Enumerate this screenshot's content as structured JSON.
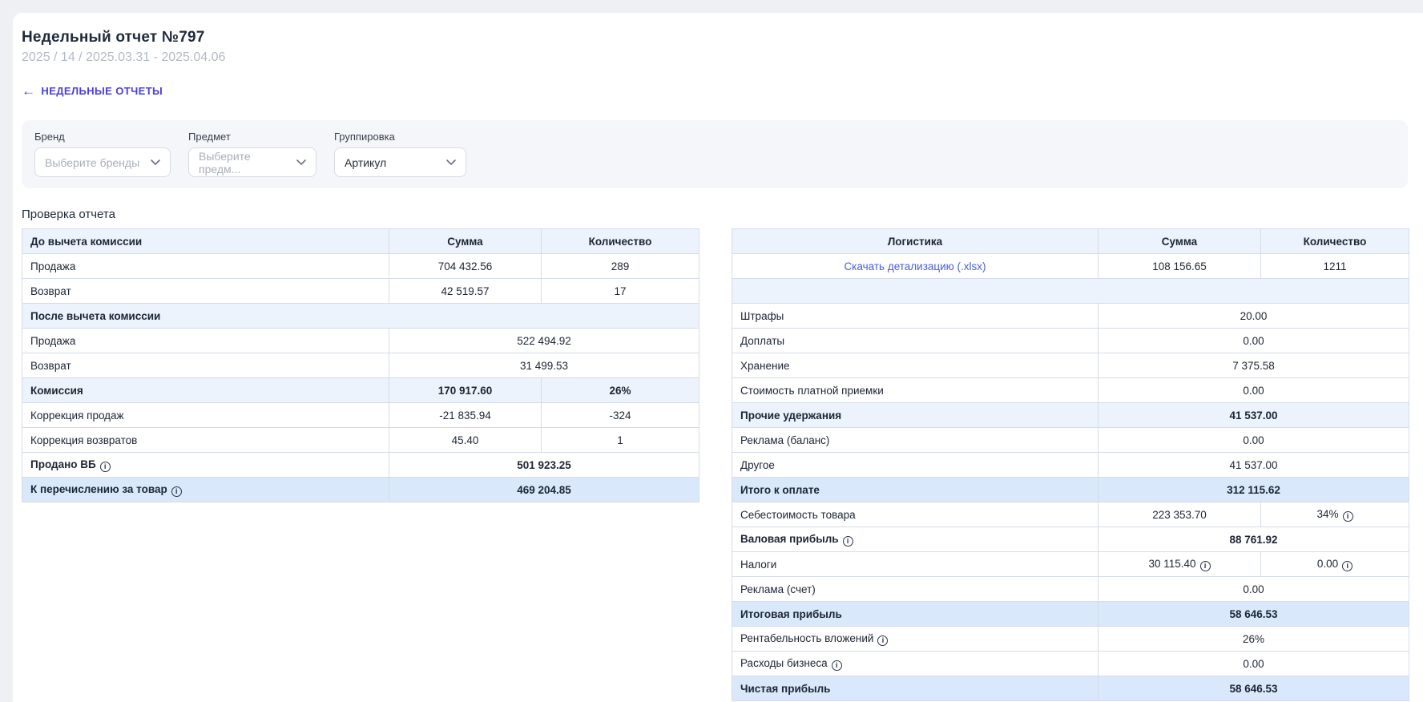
{
  "page": {
    "title": "Недельный отчет №797",
    "subtitle": "2025 / 14 / 2025.03.31 - 2025.04.06",
    "back_arrow": "←",
    "back_link": "НЕДЕЛЬНЫЕ ОТЧЕТЫ",
    "section_heading": "Проверка отчета"
  },
  "filters": {
    "brand": {
      "label": "Бренд",
      "value": "Выберите бренды"
    },
    "subject": {
      "label": "Предмет",
      "value": "Выберите предм..."
    },
    "grouping": {
      "label": "Группировка",
      "value": "Артикул"
    }
  },
  "left_table": {
    "header": [
      "До вычета комиссии",
      "Сумма",
      "Количество"
    ],
    "rows": [
      {
        "label": "Продажа",
        "cells": [
          {
            "t": "704 432.56"
          },
          {
            "t": "289"
          }
        ]
      },
      {
        "label": "Возврат",
        "cells": [
          {
            "t": "42 519.57"
          },
          {
            "t": "17"
          }
        ]
      },
      {
        "label": "После вычета комиссии",
        "style": "section",
        "cells": []
      },
      {
        "label": "Продажа",
        "cells": [
          {
            "t": "522 494.92",
            "span": 2
          }
        ]
      },
      {
        "label": "Возврат",
        "cells": [
          {
            "t": "31 499.53",
            "span": 2
          }
        ]
      },
      {
        "label": "Комиссия",
        "style": "section",
        "cells": [
          {
            "t": "170 917.60"
          },
          {
            "t": "26%"
          }
        ]
      },
      {
        "label": "Коррекция продаж",
        "cells": [
          {
            "t": "-21 835.94"
          },
          {
            "t": "-324"
          }
        ]
      },
      {
        "label": "Коррекция возвратов",
        "cells": [
          {
            "t": "45.40"
          },
          {
            "t": "1"
          }
        ]
      },
      {
        "label": "Продано ВБ",
        "info": true,
        "bold": true,
        "cells": [
          {
            "t": "501 923.25",
            "span": 2
          }
        ]
      },
      {
        "label": "К перечислению за товар",
        "info": true,
        "style": "total",
        "cells": [
          {
            "t": "469 204.85",
            "span": 2
          }
        ]
      }
    ]
  },
  "right_table": {
    "header": [
      "Логистика",
      "Сумма",
      "Количество"
    ],
    "rows": [
      {
        "label": "Скачать детализацию (.xlsx)",
        "link": true,
        "center": true,
        "cells": [
          {
            "t": "108 156.65"
          },
          {
            "t": "1211"
          }
        ]
      },
      {
        "spacer": true
      },
      {
        "label": "Штрафы",
        "cells": [
          {
            "t": "20.00",
            "span": 2
          }
        ]
      },
      {
        "label": "Доплаты",
        "cells": [
          {
            "t": "0.00",
            "span": 2
          }
        ]
      },
      {
        "label": "Хранение",
        "cells": [
          {
            "t": "7 375.58",
            "span": 2
          }
        ]
      },
      {
        "label": "Стоимость платной приемки",
        "cells": [
          {
            "t": "0.00",
            "span": 2
          }
        ]
      },
      {
        "label": "Прочие удержания",
        "style": "section",
        "cells": [
          {
            "t": "41 537.00",
            "span": 2
          }
        ]
      },
      {
        "label": "Реклама (баланс)",
        "cells": [
          {
            "t": "0.00",
            "span": 2
          }
        ]
      },
      {
        "label": "Другое",
        "cells": [
          {
            "t": "41 537.00",
            "span": 2
          }
        ]
      },
      {
        "label": "Итого к оплате",
        "style": "total",
        "cells": [
          {
            "t": "312 115.62",
            "span": 2
          }
        ]
      },
      {
        "label": "Себестоимость товара",
        "cells": [
          {
            "t": "223 353.70"
          },
          {
            "t": "34%",
            "info": true
          }
        ]
      },
      {
        "label": "Валовая прибыль",
        "info": true,
        "bold": true,
        "cells": [
          {
            "t": "88 761.92",
            "span": 2
          }
        ]
      },
      {
        "label": "Налоги",
        "cells": [
          {
            "t": "30 115.40",
            "info": true
          },
          {
            "t": "0.00",
            "info": true
          }
        ]
      },
      {
        "label": "Реклама (счет)",
        "cells": [
          {
            "t": "0.00",
            "span": 2
          }
        ]
      },
      {
        "label": "Итоговая прибыль",
        "style": "total",
        "cells": [
          {
            "t": "58 646.53",
            "span": 2
          }
        ]
      },
      {
        "label": "Рентабельность вложений",
        "info": true,
        "cells": [
          {
            "t": "26%",
            "span": 2
          }
        ]
      },
      {
        "label": "Расходы бизнеса",
        "info": true,
        "cells": [
          {
            "t": "0.00",
            "span": 2
          }
        ]
      },
      {
        "label": "Чистая прибыль",
        "style": "total",
        "cells": [
          {
            "t": "58 646.53",
            "span": 2
          }
        ]
      }
    ]
  },
  "colors": {
    "page_bg": "#eef0f3",
    "accent_back_link": "#4740d9",
    "download_link": "#4a5ce0",
    "table_header_tint": "#ecf3fc",
    "table_total_tint": "#d9e8fb"
  }
}
